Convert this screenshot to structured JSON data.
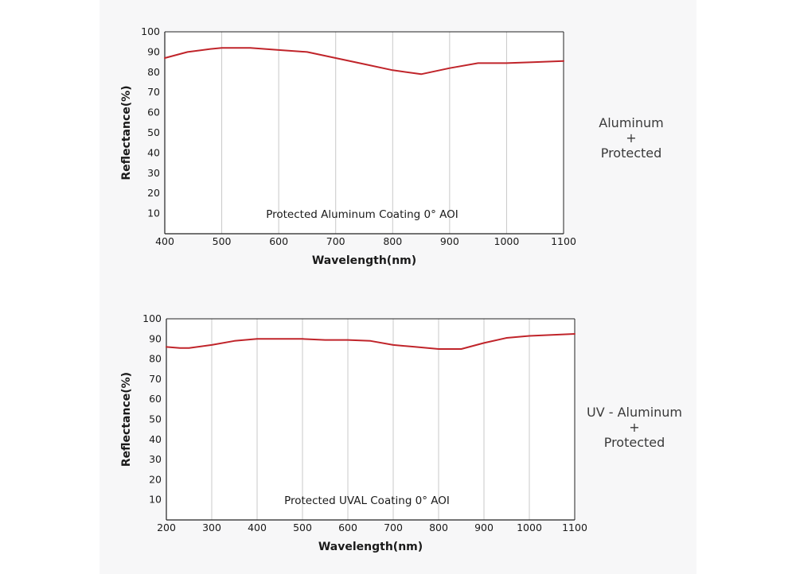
{
  "colors": {
    "background": "#ffffff",
    "panel": "#f7f7f8",
    "curve": "#c0242a",
    "grid": "#c8c8c8",
    "axis": "#222222",
    "text": "#1a1a1a"
  },
  "chart_data": [
    {
      "type": "line",
      "title": "Protected Aluminum Coating  0°  AOI",
      "xlabel": "Wavelength(nm)",
      "ylabel": "Reflectance(%)",
      "xlim": [
        400,
        1100
      ],
      "ylim": [
        0,
        100
      ],
      "x_ticks": [
        "400",
        "500",
        "600",
        "700",
        "800",
        "900",
        "1000",
        "1100"
      ],
      "y_ticks": [
        "10",
        "20",
        "30",
        "40",
        "50",
        "60",
        "70",
        "80",
        "90",
        "100"
      ],
      "grid": "vertical",
      "side_label": [
        "Aluminum",
        "+",
        "Protected"
      ],
      "series": [
        {
          "name": "Protected Aluminum",
          "x": [
            400,
            440,
            480,
            500,
            550,
            600,
            650,
            700,
            750,
            800,
            850,
            900,
            950,
            1000,
            1050,
            1100
          ],
          "y": [
            87,
            90,
            91.5,
            92,
            92,
            91,
            90,
            87,
            84,
            81,
            79,
            82,
            84.5,
            84.5,
            85,
            85.5
          ]
        }
      ]
    },
    {
      "type": "line",
      "title": "Protected UVAL Coating  0°  AOI",
      "xlabel": "Wavelength(nm)",
      "ylabel": "Reflectance(%)",
      "xlim": [
        200,
        1100
      ],
      "ylim": [
        0,
        100
      ],
      "x_ticks": [
        "200",
        "300",
        "400",
        "500",
        "600",
        "700",
        "800",
        "900",
        "1000",
        "1100"
      ],
      "y_ticks": [
        "10",
        "20",
        "30",
        "40",
        "50",
        "60",
        "70",
        "80",
        "90",
        "100"
      ],
      "grid": "vertical",
      "side_label": [
        "UV - Aluminum",
        "+",
        "Protected"
      ],
      "series": [
        {
          "name": "UV-Aluminum Protected",
          "x": [
            200,
            230,
            250,
            300,
            350,
            400,
            450,
            500,
            550,
            600,
            650,
            700,
            750,
            800,
            850,
            900,
            950,
            1000,
            1050,
            1100
          ],
          "y": [
            86,
            85.5,
            85.5,
            87,
            89,
            90,
            90,
            90,
            89.5,
            89.5,
            89,
            87,
            86,
            85,
            85,
            88,
            90.5,
            91.5,
            92,
            92.5
          ]
        }
      ]
    }
  ]
}
